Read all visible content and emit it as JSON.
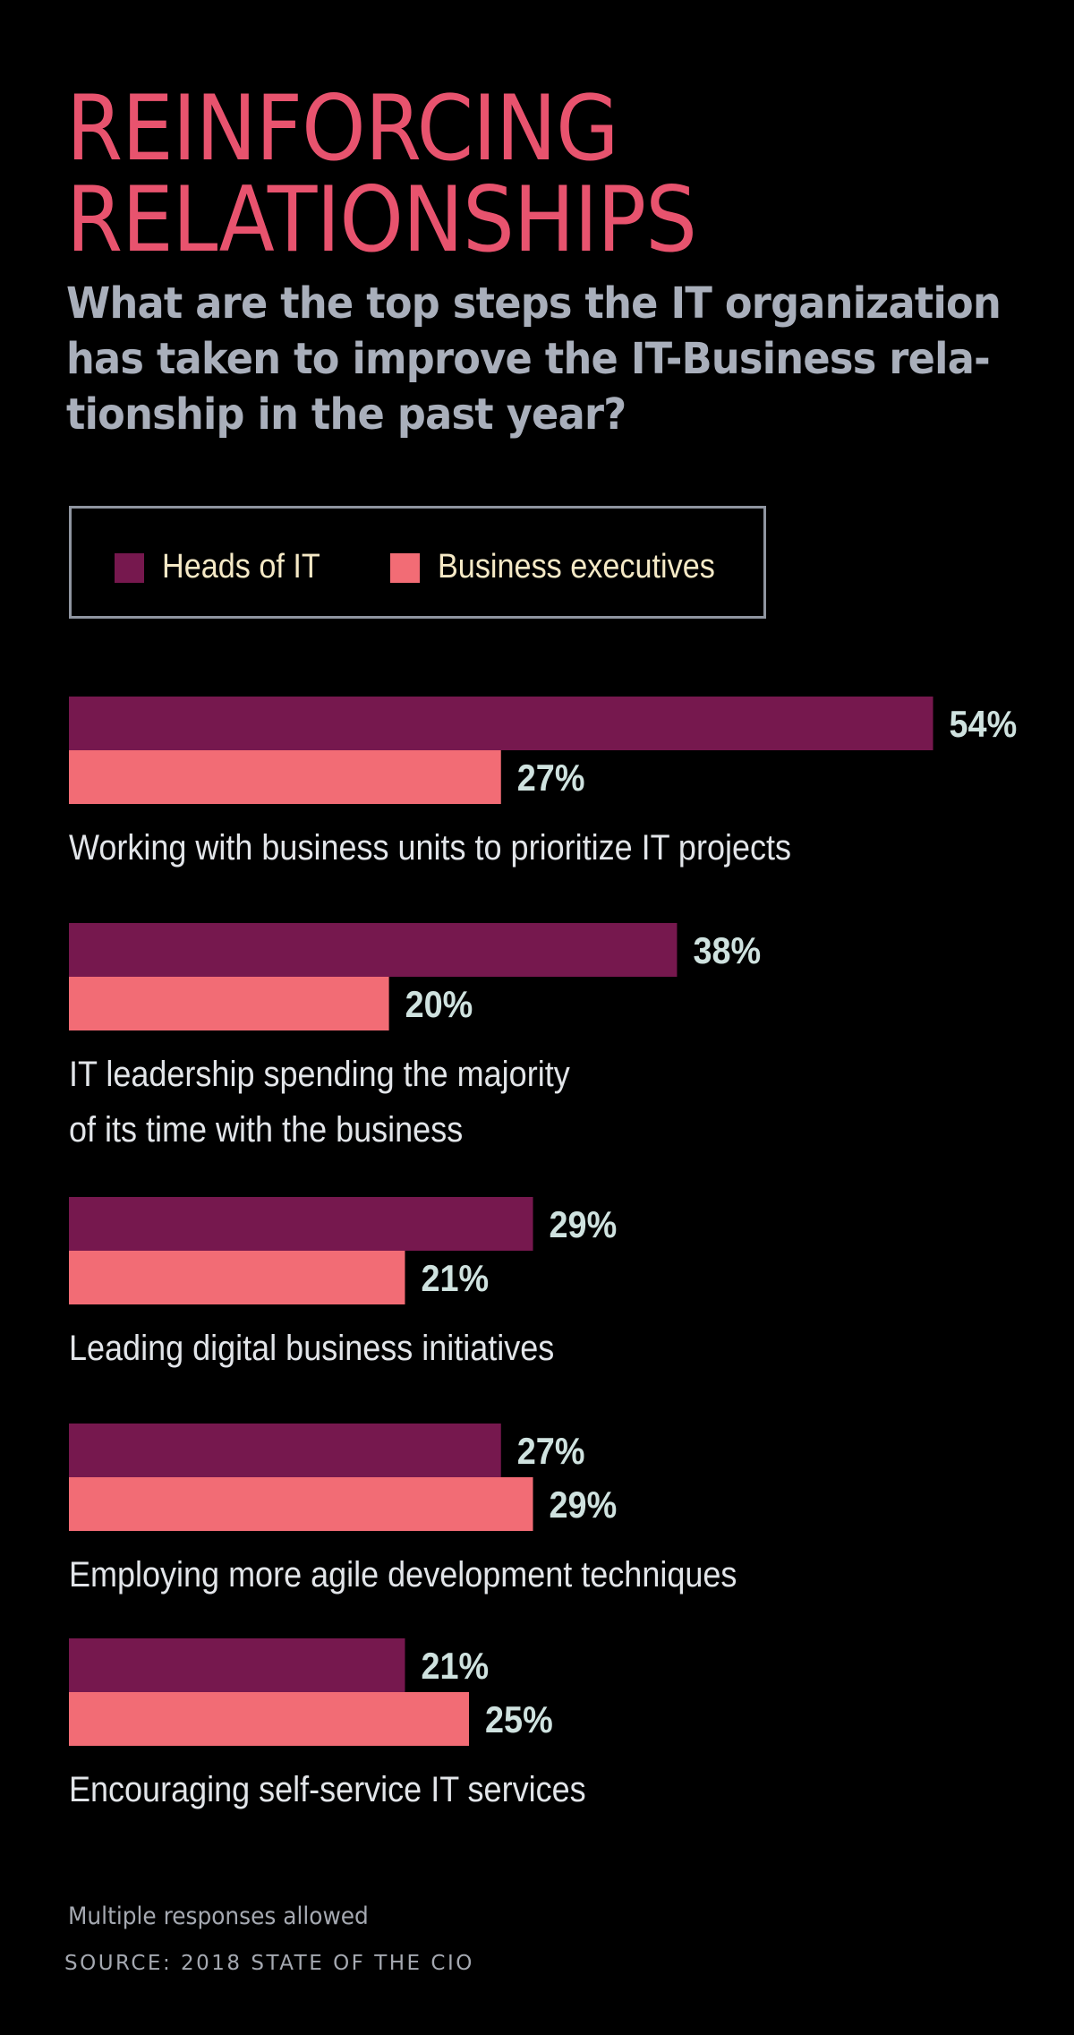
{
  "title_lines": [
    "REINFORCING",
    "RELATIONSHIPS"
  ],
  "subtitle_lines": [
    "What are the top steps the IT organization",
    "has taken to improve the IT-Business rela-",
    "tionship  in the past year?"
  ],
  "colors": {
    "background": "#000000",
    "title": "#e8536e",
    "subtitle": "#a9afbb",
    "heads_of_it": "#76184e",
    "business_executives": "#f26c75",
    "value_label": "#cfe2df"
  },
  "chart_data": {
    "type": "bar",
    "orientation": "horizontal",
    "categories": [
      "Working with business units to prioritize IT projects",
      "IT leadership spending the majority of its time with the business",
      "Leading digital business initiatives",
      "Employing more agile development techniques",
      "Encouraging self-service IT services"
    ],
    "category_label_lines": [
      [
        "Working with business units to prioritize IT projects"
      ],
      [
        "IT leadership spending the majority",
        "of its time with the business"
      ],
      [
        "Leading digital business initiatives"
      ],
      [
        "Employing more agile development techniques"
      ],
      [
        "Encouraging self-service IT services"
      ]
    ],
    "series": [
      {
        "name": "Heads of IT",
        "values": [
          54,
          38,
          29,
          27,
          21
        ],
        "labels": [
          "54%",
          "38%",
          "29%",
          "27%",
          "21%"
        ]
      },
      {
        "name": "Business executives",
        "values": [
          27,
          20,
          21,
          29,
          25
        ],
        "labels": [
          "27%",
          "20%",
          "21%",
          "29%",
          "25%"
        ]
      }
    ],
    "unit": "%",
    "legend": {
      "position": "top-left",
      "boxed": true
    },
    "grid": false,
    "axes_visible": false
  },
  "footnote": "Multiple responses allowed",
  "source": "SOURCE: 2018 STATE OF THE CIO"
}
